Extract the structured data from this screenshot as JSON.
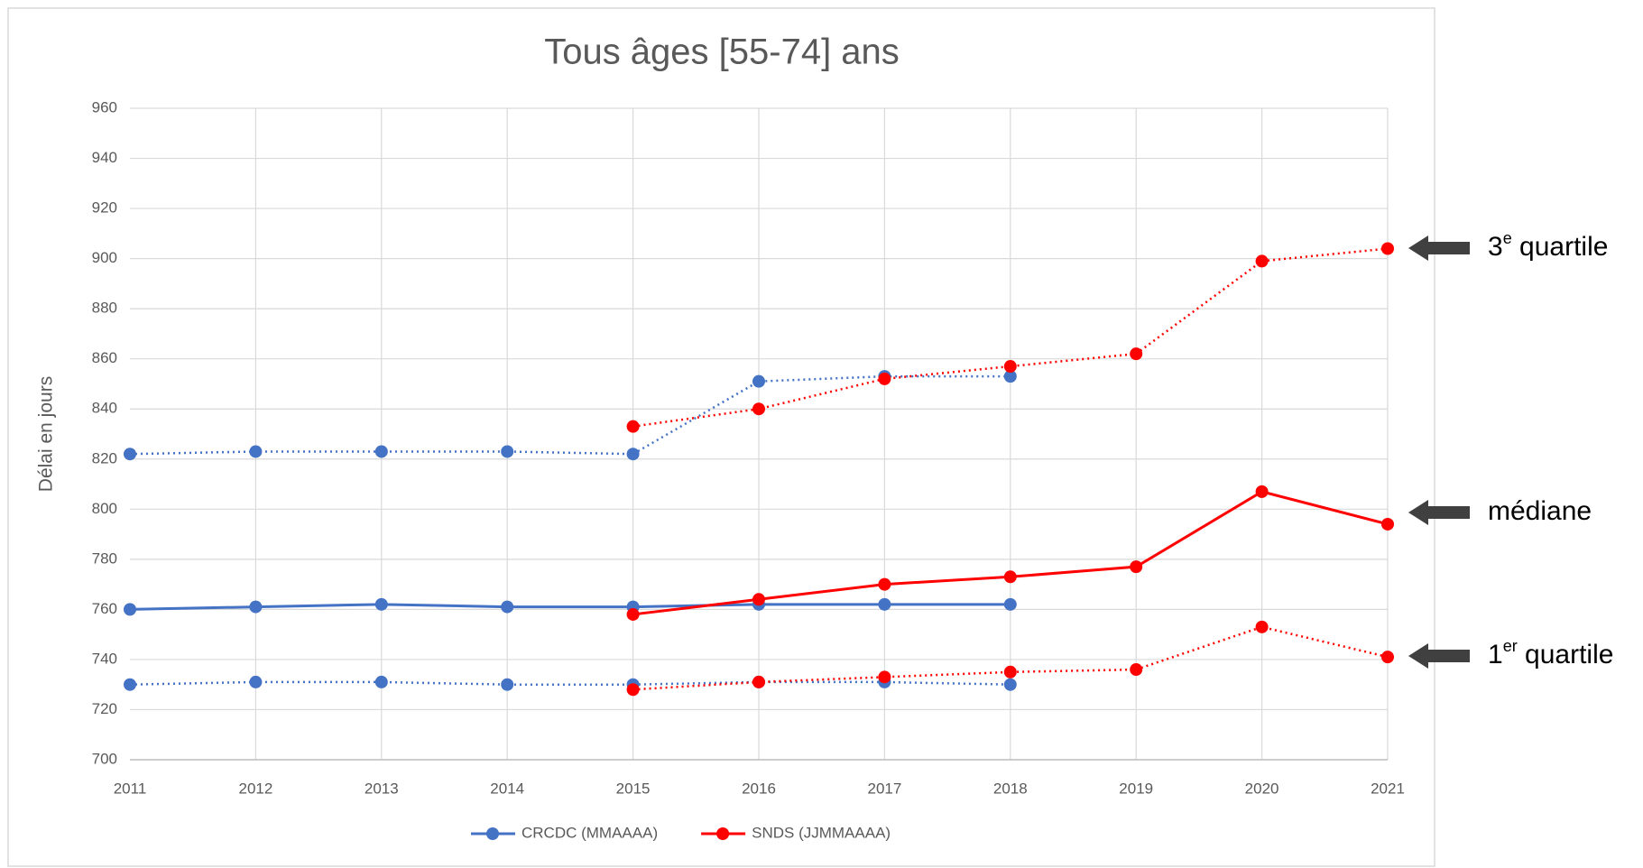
{
  "chart_data": {
    "type": "line",
    "title": "Tous âges [55-74] ans",
    "y_label": "Délai en jours",
    "categories": [
      "2011",
      "2012",
      "2013",
      "2014",
      "2015",
      "2016",
      "2017",
      "2018",
      "2019",
      "2020",
      "2021"
    ],
    "ylim": [
      700,
      960
    ],
    "yticks": [
      700,
      720,
      740,
      760,
      780,
      800,
      820,
      840,
      860,
      880,
      900,
      920,
      940,
      960
    ],
    "grid": true,
    "legend": "bottom",
    "series": [
      {
        "name": "CRCDC (MMAAAA)",
        "color": "#4472c4",
        "dotted": false,
        "values": [
          760,
          761,
          762,
          761,
          761,
          762,
          762,
          762,
          null,
          null,
          null
        ]
      },
      {
        "name": "SNDS (JJMMAAAA)",
        "color": "#ff0000",
        "dotted": false,
        "values": [
          null,
          null,
          null,
          null,
          758,
          764,
          770,
          773,
          777,
          807,
          794
        ]
      },
      {
        "color": "#4472c4",
        "dotted": true,
        "values": [
          822,
          823,
          823,
          823,
          822,
          851,
          853,
          853,
          null,
          null,
          null
        ]
      },
      {
        "color": "#4472c4",
        "dotted": true,
        "values": [
          730,
          731,
          731,
          730,
          730,
          731,
          731,
          730,
          null,
          null,
          null
        ]
      },
      {
        "color": "#ff0000",
        "dotted": true,
        "values": [
          null,
          null,
          null,
          null,
          833,
          840,
          852,
          857,
          862,
          899,
          904
        ]
      },
      {
        "color": "#ff0000",
        "dotted": true,
        "values": [
          null,
          null,
          null,
          null,
          728,
          731,
          733,
          735,
          736,
          753,
          741
        ]
      }
    ],
    "annotations": [
      {
        "prefix": "3",
        "sup": "e",
        "suffix": " quartile"
      },
      {
        "prefix": "médiane"
      },
      {
        "prefix": "1",
        "sup": "er",
        "suffix": " quartile"
      }
    ]
  }
}
